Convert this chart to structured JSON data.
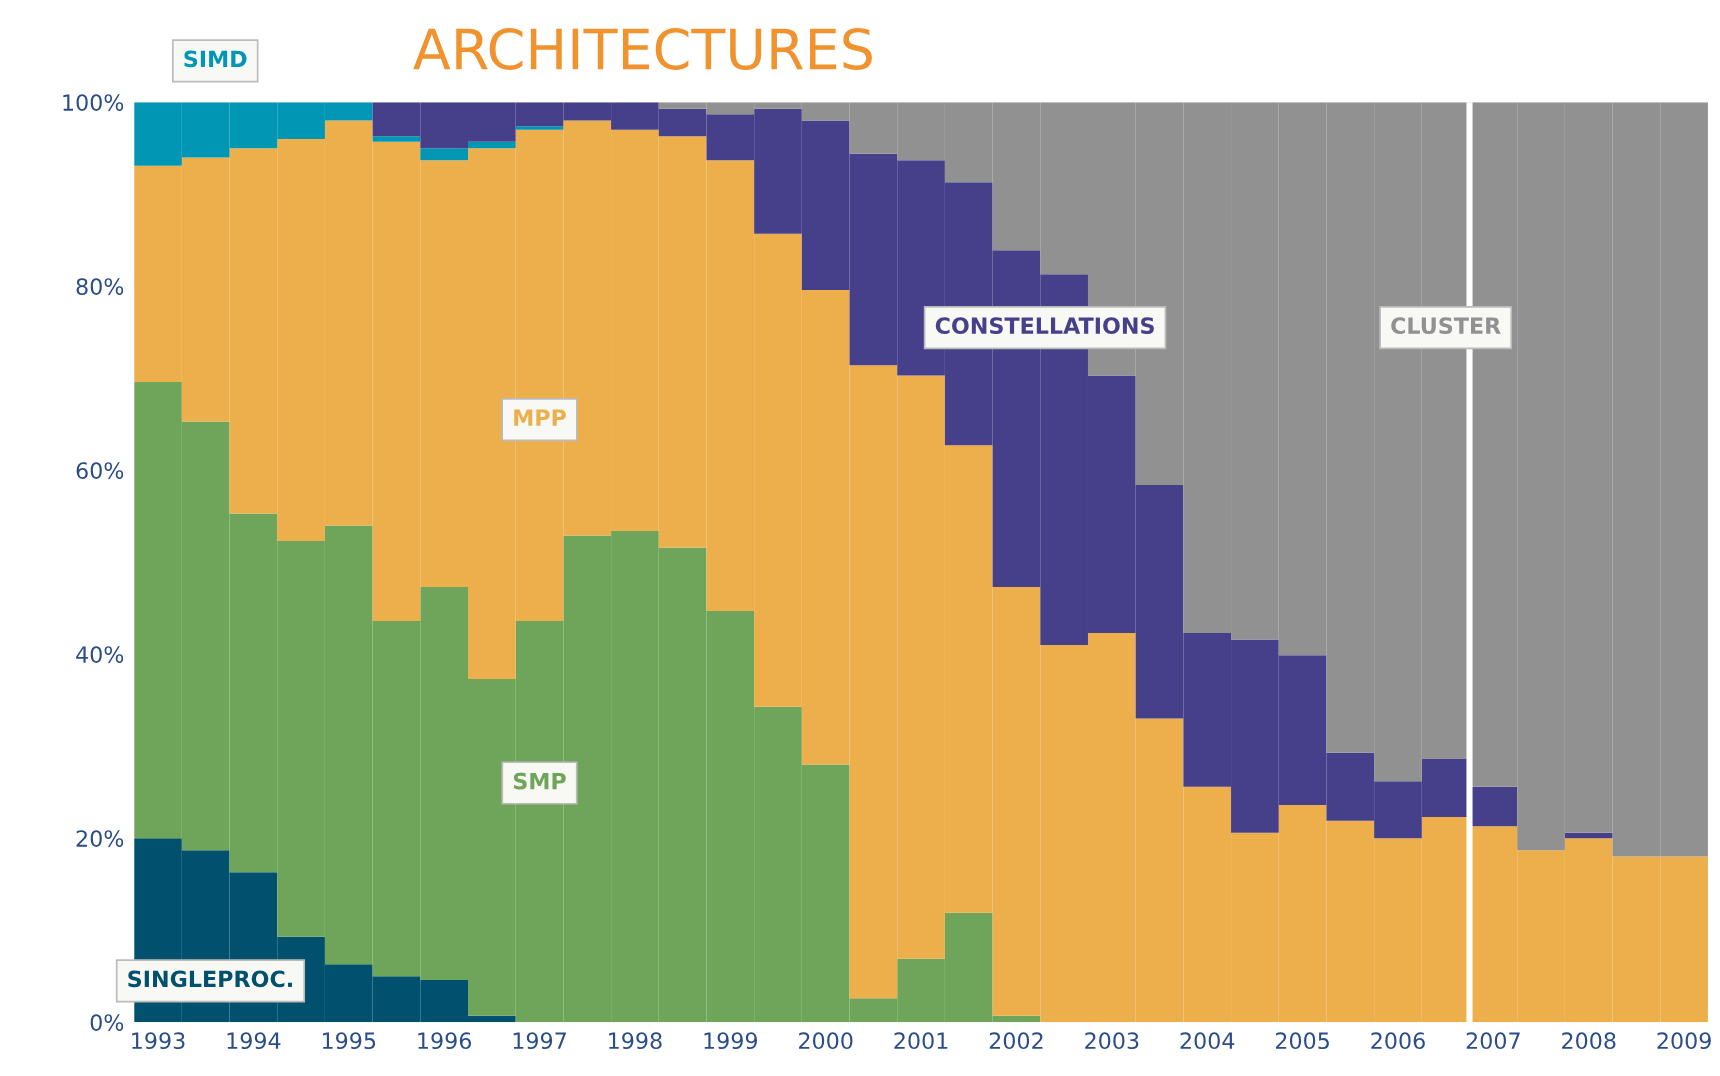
{
  "chart_data": {
    "type": "bar",
    "stacked": true,
    "title": "ARCHITECTURES",
    "x": [
      1993,
      1993.5,
      1994,
      1994.5,
      1995,
      1995.5,
      1996,
      1996.5,
      1997,
      1997.5,
      1998,
      1998.5,
      1999,
      1999.5,
      2000,
      2000.5,
      2001,
      2001.5,
      2002,
      2002.5,
      2003,
      2003.5,
      2004,
      2004.5,
      2005,
      2005.5,
      2006,
      2006.5,
      2007,
      2007.5,
      2008,
      2008.5,
      2009
    ],
    "series": [
      {
        "name": "SINGLEPROC.",
        "color": "#00506e",
        "values": [
          20.0,
          18.7,
          16.3,
          9.3,
          6.3,
          5.0,
          4.6,
          0.7,
          0,
          0,
          0,
          0,
          0,
          0,
          0,
          0,
          0,
          0,
          0,
          0,
          0,
          0,
          0,
          0,
          0,
          0,
          0,
          0,
          0,
          0,
          0,
          0,
          0
        ]
      },
      {
        "name": "SMP",
        "color": "#6fa55a",
        "values": [
          49.6,
          46.6,
          39.0,
          43.0,
          47.7,
          38.6,
          42.7,
          36.6,
          43.6,
          52.9,
          53.4,
          51.6,
          44.7,
          34.3,
          28.0,
          2.6,
          6.9,
          11.9,
          0.7,
          0,
          0,
          0,
          0,
          0,
          0,
          0,
          0,
          0,
          0,
          0,
          0,
          0,
          0
        ]
      },
      {
        "name": "MPP",
        "color": "#ecaf4c",
        "values": [
          23.5,
          28.7,
          39.7,
          43.7,
          44.0,
          52.1,
          46.4,
          57.7,
          53.4,
          45.1,
          43.6,
          44.7,
          49.0,
          51.4,
          51.6,
          68.8,
          63.4,
          50.8,
          46.6,
          41.0,
          42.3,
          33.0,
          25.6,
          20.6,
          23.6,
          21.9,
          20.0,
          22.3,
          21.3,
          18.7,
          20.0,
          18.0,
          18.0
        ]
      },
      {
        "name": "SIMD",
        "color": "#0096b4",
        "values": [
          6.9,
          6.0,
          5.0,
          4.0,
          2.0,
          0.6,
          1.3,
          0.7,
          0.4,
          0,
          0,
          0,
          0,
          0,
          0,
          0,
          0,
          0,
          0,
          0,
          0,
          0,
          0,
          0,
          0,
          0,
          0,
          0,
          0,
          0,
          0,
          0,
          0
        ]
      },
      {
        "name": "CONSTELLATIONS",
        "color": "#463f8a",
        "values": [
          0,
          0,
          0,
          0,
          0,
          3.7,
          5.0,
          4.3,
          2.6,
          2.0,
          3.0,
          3.0,
          5.0,
          13.6,
          18.4,
          23.0,
          23.4,
          28.6,
          36.6,
          40.3,
          28.0,
          25.4,
          16.7,
          21.0,
          16.3,
          7.4,
          6.2,
          6.3,
          4.3,
          0,
          0.6,
          0,
          0
        ]
      },
      {
        "name": "CLUSTER",
        "color": "#909190",
        "values": [
          0,
          0,
          0,
          0,
          0,
          0,
          0,
          0,
          0,
          0,
          0,
          0.7,
          1.3,
          0.7,
          2.0,
          5.6,
          6.3,
          8.7,
          16.1,
          18.7,
          29.7,
          41.6,
          57.7,
          58.4,
          60.1,
          70.7,
          73.8,
          71.4,
          74.4,
          81.3,
          79.4,
          82.0,
          82.0
        ]
      }
    ],
    "xlim": [
      1992.75,
      2009.25
    ],
    "xticks": [
      1993,
      1994,
      1995,
      1996,
      1997,
      1998,
      1999,
      2000,
      2001,
      2002,
      2003,
      2004,
      2005,
      2006,
      2007,
      2008,
      2009
    ],
    "ylim": [
      0,
      100
    ],
    "yticks": [
      {
        "value": 0,
        "label": "0%"
      },
      {
        "value": 20,
        "label": "20%"
      },
      {
        "value": 40,
        "label": "40%"
      },
      {
        "value": 60,
        "label": "60%"
      },
      {
        "value": 80,
        "label": "80%"
      },
      {
        "value": 100,
        "label": "100%"
      }
    ],
    "ref_lines": [
      {
        "axis": "x",
        "value": 2006.75,
        "color": "#ffffff"
      }
    ],
    "grid": false,
    "legend": false
  }
}
